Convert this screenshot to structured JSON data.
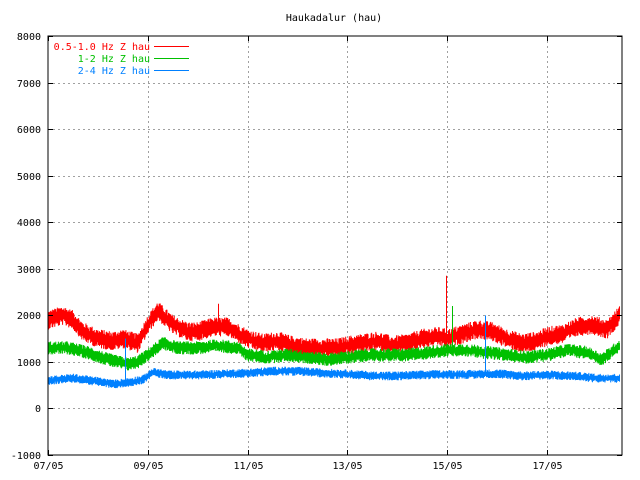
{
  "chart_data": {
    "type": "line",
    "title": "Haukadalur (hau)",
    "xlabel": "",
    "ylabel": "",
    "ylim": [
      -1000,
      8000
    ],
    "yticks": [
      -1000,
      0,
      1000,
      2000,
      3000,
      4000,
      5000,
      6000,
      7000,
      8000
    ],
    "xlim": [
      0,
      11.5
    ],
    "x_unit": "days since 07/05",
    "xticks": [
      {
        "value": 0,
        "label": "07/05"
      },
      {
        "value": 2,
        "label": "09/05"
      },
      {
        "value": 4,
        "label": "11/05"
      },
      {
        "value": 6,
        "label": "13/05"
      },
      {
        "value": 8,
        "label": "15/05"
      },
      {
        "value": 10,
        "label": "17/05"
      }
    ],
    "grid": true,
    "legend_position": "top-left",
    "series": [
      {
        "name": "0.5-1.0 Hz Z hau",
        "color": "#ff0000",
        "noise": 160,
        "x": [
          0,
          0.3,
          0.5,
          0.7,
          1.0,
          1.3,
          1.5,
          1.8,
          2.0,
          2.2,
          2.5,
          2.8,
          3.0,
          3.3,
          3.6,
          4.0,
          4.3,
          4.6,
          4.9,
          5.2,
          5.5,
          5.8,
          6.0,
          6.3,
          6.6,
          6.9,
          7.2,
          7.5,
          7.8,
          8.0,
          8.3,
          8.6,
          8.9,
          9.2,
          9.5,
          9.8,
          10.0,
          10.3,
          10.6,
          10.9,
          11.2,
          11.45
        ],
        "y": [
          1900,
          2000,
          1900,
          1650,
          1500,
          1450,
          1500,
          1400,
          1800,
          2100,
          1800,
          1650,
          1650,
          1750,
          1750,
          1500,
          1400,
          1450,
          1350,
          1300,
          1300,
          1300,
          1350,
          1400,
          1450,
          1350,
          1400,
          1500,
          1550,
          1500,
          1600,
          1700,
          1650,
          1500,
          1400,
          1450,
          1550,
          1600,
          1750,
          1800,
          1700,
          2000
        ]
      },
      {
        "name": "1-2 Hz Z hau",
        "color": "#00c000",
        "noise": 110,
        "x": [
          0,
          0.4,
          0.8,
          1.2,
          1.6,
          1.8,
          2.0,
          2.3,
          2.6,
          3.0,
          3.4,
          3.8,
          4.0,
          4.4,
          4.8,
          5.2,
          5.6,
          6.0,
          6.4,
          6.8,
          7.2,
          7.6,
          8.0,
          8.4,
          8.8,
          9.2,
          9.6,
          10.0,
          10.4,
          10.8,
          11.1,
          11.45
        ],
        "y": [
          1300,
          1300,
          1200,
          1050,
          950,
          1000,
          1150,
          1400,
          1300,
          1300,
          1350,
          1300,
          1150,
          1100,
          1150,
          1100,
          1050,
          1100,
          1150,
          1150,
          1150,
          1200,
          1250,
          1250,
          1200,
          1150,
          1100,
          1150,
          1250,
          1200,
          1050,
          1350
        ]
      },
      {
        "name": "2-4 Hz Z hau",
        "color": "#0080ff",
        "noise": 75,
        "x": [
          0,
          0.5,
          1.0,
          1.3,
          1.6,
          1.9,
          2.1,
          2.4,
          3.0,
          3.5,
          4.0,
          4.5,
          5.0,
          5.5,
          6.0,
          6.5,
          7.0,
          7.5,
          8.0,
          8.5,
          9.0,
          9.5,
          10.0,
          10.5,
          11.0,
          11.45
        ],
        "y": [
          600,
          650,
          580,
          520,
          560,
          620,
          780,
          720,
          720,
          740,
          760,
          800,
          800,
          760,
          740,
          700,
          700,
          720,
          730,
          730,
          750,
          700,
          720,
          700,
          650,
          650
        ]
      }
    ],
    "spikes": [
      {
        "series": 0,
        "x": 7.98,
        "y": 2850
      },
      {
        "series": 1,
        "x": 8.1,
        "y": 2200
      },
      {
        "series": 0,
        "x": 3.4,
        "y": 2250
      },
      {
        "series": 2,
        "x": 1.55,
        "y": 1500
      },
      {
        "series": 2,
        "x": 8.75,
        "y": 2000
      }
    ]
  }
}
